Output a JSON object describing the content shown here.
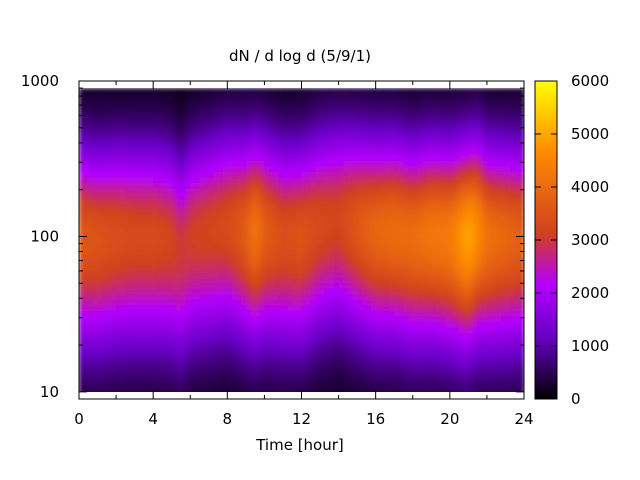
{
  "chart_data": {
    "type": "heatmap",
    "title": "dN / d log d (5/9/1)",
    "xlabel": "Time [hour]",
    "ylabel": "",
    "xlim": [
      0,
      24
    ],
    "ylim": [
      9,
      1000
    ],
    "y_scale": "log",
    "x_ticks": [
      0,
      4,
      8,
      12,
      16,
      20,
      24
    ],
    "y_ticks": [
      10,
      100,
      1000
    ],
    "colorbar": {
      "range": [
        0,
        6000
      ],
      "ticks": [
        0,
        1000,
        2000,
        3000,
        4000,
        5000,
        6000
      ],
      "palette": [
        "#000000",
        "#6a00c8",
        "#b400ff",
        "#d04020",
        "#ff8c00",
        "#ffff00"
      ]
    },
    "series": [
      {
        "x": [
          0,
          1,
          2,
          3,
          4,
          5,
          5.5,
          6,
          7,
          8,
          9,
          9.5,
          10,
          11,
          12,
          13,
          14,
          15,
          16,
          17,
          18,
          19,
          20,
          21,
          21.5,
          22,
          23,
          24
        ],
        "peak_diameter": [
          100,
          95,
          100,
          100,
          100,
          95,
          80,
          100,
          110,
          120,
          110,
          110,
          110,
          100,
          100,
          120,
          130,
          120,
          110,
          110,
          100,
          105,
          100,
          100,
          110,
          100,
          100,
          100
        ],
        "peak_value": [
          3600,
          3500,
          3400,
          3300,
          3300,
          3200,
          3000,
          3100,
          3200,
          3300,
          3700,
          4200,
          3700,
          3400,
          3500,
          3300,
          3200,
          3600,
          3900,
          4000,
          4000,
          4200,
          4300,
          5000,
          4600,
          4100,
          3900,
          3700
        ]
      }
    ]
  }
}
